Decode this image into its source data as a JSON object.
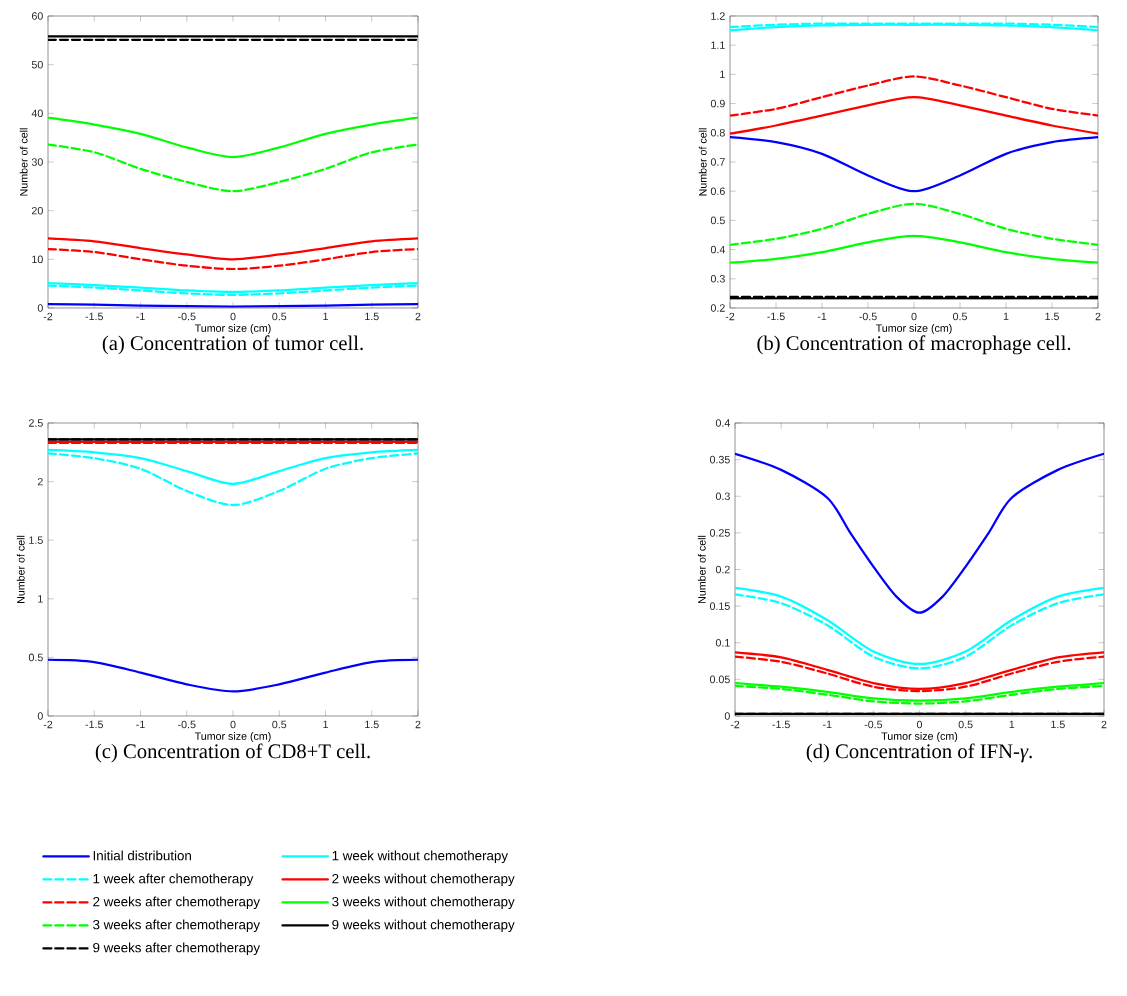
{
  "chart_data": [
    {
      "type": "line",
      "title": "(a) Concentration of tumor cell.",
      "xlabel": "Tumor size (cm)",
      "ylabel": "Number of cell",
      "x": [
        -2,
        -1.5,
        -1,
        -0.5,
        0,
        0.5,
        1,
        1.5,
        2
      ],
      "xlim": [
        -2,
        2
      ],
      "xticks": [
        -2,
        -1.5,
        -1,
        -0.5,
        0,
        0.5,
        1,
        1.5,
        2
      ],
      "ylim": [
        0,
        60
      ],
      "yticks": [
        0,
        10,
        20,
        30,
        40,
        50,
        60
      ],
      "marker": "none",
      "legend": "bottom",
      "series": [
        {
          "name": "Initial distribution",
          "color": "#0000ff",
          "line_style": "solid",
          "values": [
            0.8,
            0.7,
            0.5,
            0.4,
            0.3,
            0.4,
            0.5,
            0.7,
            0.8
          ]
        },
        {
          "name": "1 week without chemotherapy",
          "color": "#00ffff",
          "line_style": "solid",
          "values": [
            5.1,
            4.7,
            4.2,
            3.6,
            3.3,
            3.6,
            4.2,
            4.7,
            5.1
          ]
        },
        {
          "name": "1 week after chemotherapy",
          "color": "#00ffff",
          "line_style": "dashed",
          "values": [
            4.6,
            4.2,
            3.6,
            3.0,
            2.7,
            3.0,
            3.6,
            4.2,
            4.6
          ]
        },
        {
          "name": "2 weeks without chemotherapy",
          "color": "#ff0000",
          "line_style": "solid",
          "values": [
            14.3,
            13.7,
            12.3,
            11.0,
            10.0,
            11.0,
            12.3,
            13.7,
            14.3
          ]
        },
        {
          "name": "2 weeks after chemotherapy",
          "color": "#ff0000",
          "line_style": "dashed",
          "values": [
            12.1,
            11.5,
            10.0,
            8.7,
            8.0,
            8.7,
            10.0,
            11.5,
            12.1
          ]
        },
        {
          "name": "3 weeks without chemotherapy",
          "color": "#00ff00",
          "line_style": "solid",
          "values": [
            39.1,
            37.7,
            35.8,
            33.0,
            31.0,
            33.0,
            35.8,
            37.7,
            39.1
          ]
        },
        {
          "name": "3 weeks after chemotherapy",
          "color": "#00ff00",
          "line_style": "dashed",
          "values": [
            33.6,
            32.0,
            28.6,
            25.9,
            24.0,
            25.9,
            28.6,
            32.0,
            33.6
          ]
        },
        {
          "name": "9 weeks without chemotherapy",
          "color": "#000000",
          "line_style": "solid",
          "values": [
            55.8,
            55.8,
            55.8,
            55.8,
            55.8,
            55.8,
            55.8,
            55.8,
            55.8
          ]
        },
        {
          "name": "9 weeks after chemotherapy",
          "color": "#000000",
          "line_style": "dashed",
          "values": [
            55.1,
            55.1,
            55.1,
            55.1,
            55.1,
            55.1,
            55.1,
            55.1,
            55.1
          ]
        }
      ]
    },
    {
      "type": "line",
      "title": "(b) Concentration of macrophage cell.",
      "xlabel": "Tumor size (cm)",
      "ylabel": "Number of cell",
      "x": [
        -2,
        -1.5,
        -1,
        -0.5,
        0,
        0.5,
        1,
        1.5,
        2
      ],
      "xlim": [
        -2,
        2
      ],
      "xticks": [
        -2,
        -1.5,
        -1,
        -0.5,
        0,
        0.5,
        1,
        1.5,
        2
      ],
      "ylim": [
        0.2,
        1.2
      ],
      "yticks": [
        0.2,
        0.3,
        0.4,
        0.5,
        0.6,
        0.7,
        0.8,
        0.9,
        1,
        1.1,
        1.2
      ],
      "marker": "none",
      "series": [
        {
          "color": "#0000ff",
          "line_style": "solid",
          "values": [
            0.785,
            0.768,
            0.728,
            0.654,
            0.6,
            0.654,
            0.728,
            0.768,
            0.785
          ]
        },
        {
          "color": "#00ffff",
          "line_style": "solid",
          "values": [
            1.151,
            1.162,
            1.168,
            1.17,
            1.17,
            1.17,
            1.168,
            1.162,
            1.151
          ]
        },
        {
          "color": "#00ffff",
          "line_style": "dashed",
          "values": [
            1.162,
            1.17,
            1.174,
            1.174,
            1.174,
            1.174,
            1.174,
            1.17,
            1.162
          ]
        },
        {
          "color": "#ff0000",
          "line_style": "solid",
          "values": [
            0.797,
            0.825,
            0.859,
            0.894,
            0.922,
            0.894,
            0.859,
            0.825,
            0.797
          ]
        },
        {
          "color": "#ff0000",
          "line_style": "dashed",
          "values": [
            0.859,
            0.882,
            0.922,
            0.962,
            0.993,
            0.962,
            0.922,
            0.882,
            0.859
          ]
        },
        {
          "color": "#00ff00",
          "line_style": "solid",
          "values": [
            0.355,
            0.368,
            0.391,
            0.425,
            0.447,
            0.425,
            0.391,
            0.368,
            0.355
          ]
        },
        {
          "color": "#00ff00",
          "line_style": "dashed",
          "values": [
            0.416,
            0.437,
            0.471,
            0.522,
            0.557,
            0.522,
            0.471,
            0.437,
            0.416
          ]
        },
        {
          "color": "#000000",
          "line_style": "solid",
          "values": [
            0.233,
            0.233,
            0.233,
            0.233,
            0.233,
            0.233,
            0.233,
            0.233,
            0.233
          ]
        },
        {
          "color": "#000000",
          "line_style": "dashed",
          "values": [
            0.238,
            0.238,
            0.238,
            0.238,
            0.238,
            0.238,
            0.238,
            0.238,
            0.238
          ]
        }
      ]
    },
    {
      "type": "line",
      "title": "(c) Concentration of CD8+T cell.",
      "xlabel": "Tumor size (cm)",
      "ylabel": "Number of cell",
      "x": [
        -2,
        -1.5,
        -1,
        -0.5,
        0,
        0.5,
        1,
        1.5,
        2
      ],
      "xlim": [
        -2,
        2
      ],
      "xticks": [
        -2,
        -1.5,
        -1,
        -0.5,
        0,
        0.5,
        1,
        1.5,
        2
      ],
      "ylim": [
        0,
        2.5
      ],
      "yticks": [
        0,
        0.5,
        1,
        1.5,
        2,
        2.5
      ],
      "marker": "none",
      "series": [
        {
          "color": "#0000ff",
          "line_style": "solid",
          "values": [
            0.48,
            0.46,
            0.37,
            0.27,
            0.21,
            0.27,
            0.37,
            0.46,
            0.48
          ]
        },
        {
          "color": "#00ffff",
          "line_style": "solid",
          "values": [
            2.27,
            2.25,
            2.2,
            2.09,
            1.98,
            2.09,
            2.2,
            2.25,
            2.27
          ]
        },
        {
          "color": "#00ffff",
          "line_style": "dashed",
          "values": [
            2.24,
            2.2,
            2.11,
            1.92,
            1.8,
            1.92,
            2.11,
            2.2,
            2.24
          ]
        },
        {
          "color": "#ff0000",
          "line_style": "solid",
          "values": [
            2.34,
            2.34,
            2.34,
            2.34,
            2.34,
            2.34,
            2.34,
            2.34,
            2.34
          ]
        },
        {
          "color": "#ff0000",
          "line_style": "dashed",
          "values": [
            2.33,
            2.33,
            2.33,
            2.33,
            2.33,
            2.33,
            2.33,
            2.33,
            2.33
          ]
        },
        {
          "color": "#00ff00",
          "line_style": "solid",
          "values": [
            null,
            null,
            null,
            null,
            null,
            null,
            null,
            null,
            null
          ]
        },
        {
          "color": "#00ff00",
          "line_style": "dashed",
          "values": [
            null,
            null,
            null,
            null,
            null,
            null,
            null,
            null,
            null
          ]
        },
        {
          "color": "#000000",
          "line_style": "solid",
          "values": [
            2.36,
            2.36,
            2.36,
            2.36,
            2.36,
            2.36,
            2.36,
            2.36,
            2.36
          ]
        },
        {
          "color": "#000000",
          "line_style": "dashed",
          "values": [
            2.36,
            2.36,
            2.36,
            2.36,
            2.36,
            2.36,
            2.36,
            2.36,
            2.36
          ]
        }
      ]
    },
    {
      "type": "line",
      "title": "(d) Concentration of IFN-*γ*.",
      "xlabel": "Tumor size (cm)",
      "ylabel": "Number of cell",
      "x": [
        -2,
        -1.5,
        -1,
        -0.5,
        0,
        0.5,
        1,
        1.5,
        2
      ],
      "xlim": [
        -2,
        2
      ],
      "xticks": [
        -2,
        -1.5,
        -1,
        -0.5,
        0,
        0.5,
        1,
        1.5,
        2
      ],
      "ylim": [
        0,
        0.4
      ],
      "yticks": [
        0,
        0.05,
        0.1,
        0.15,
        0.2,
        0.25,
        0.3,
        0.35,
        0.4
      ],
      "marker": "none",
      "series": [
        {
          "color": "#0000ff",
          "line_style": "solid",
          "x": [
            -2,
            -1.5,
            -1,
            -0.75,
            -0.5,
            -0.25,
            0,
            0.25,
            0.5,
            0.75,
            1,
            1.5,
            2
          ],
          "values": [
            0.358,
            0.336,
            0.298,
            0.25,
            0.204,
            0.163,
            0.141,
            0.163,
            0.204,
            0.25,
            0.298,
            0.336,
            0.358
          ]
        },
        {
          "color": "#00ffff",
          "line_style": "solid",
          "values": [
            0.175,
            0.163,
            0.131,
            0.088,
            0.071,
            0.088,
            0.131,
            0.163,
            0.175
          ]
        },
        {
          "color": "#00ffff",
          "line_style": "dashed",
          "values": [
            0.166,
            0.154,
            0.124,
            0.081,
            0.065,
            0.081,
            0.124,
            0.154,
            0.166
          ]
        },
        {
          "color": "#ff0000",
          "line_style": "solid",
          "values": [
            0.087,
            0.08,
            0.063,
            0.045,
            0.037,
            0.045,
            0.063,
            0.08,
            0.087
          ]
        },
        {
          "color": "#ff0000",
          "line_style": "dashed",
          "values": [
            0.081,
            0.074,
            0.058,
            0.04,
            0.034,
            0.04,
            0.058,
            0.074,
            0.081
          ]
        },
        {
          "color": "#00ff00",
          "line_style": "solid",
          "values": [
            0.045,
            0.04,
            0.033,
            0.024,
            0.021,
            0.024,
            0.033,
            0.04,
            0.045
          ]
        },
        {
          "color": "#00ff00",
          "line_style": "dashed",
          "values": [
            0.041,
            0.037,
            0.029,
            0.02,
            0.017,
            0.02,
            0.029,
            0.037,
            0.041
          ]
        },
        {
          "color": "#000000",
          "line_style": "solid",
          "values": [
            0.003,
            0.003,
            0.003,
            0.003,
            0.003,
            0.003,
            0.003,
            0.003,
            0.003
          ]
        },
        {
          "color": "#000000",
          "line_style": "dashed",
          "values": [
            0.003,
            0.003,
            0.003,
            0.003,
            0.003,
            0.003,
            0.003,
            0.003,
            0.003
          ]
        }
      ]
    }
  ]
}
